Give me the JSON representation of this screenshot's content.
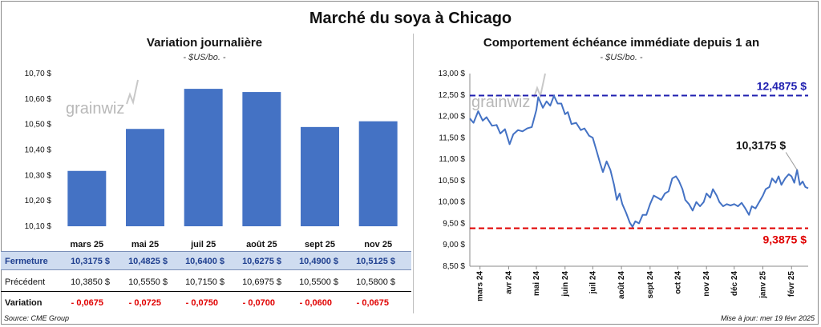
{
  "title": "Marché du soya à Chicago",
  "left_panel": {
    "title": "Variation journalière",
    "subtitle": "- $US/bo. -",
    "watermark": "grainwiz"
  },
  "right_panel": {
    "title": "Comportement échéance immédiate depuis 1 an",
    "subtitle": "- $US/bo. -",
    "watermark": "grainwiz"
  },
  "table": {
    "rows": [
      {
        "label": "Fermeture",
        "values": [
          "10,3175  $",
          "10,4825  $",
          "10,6400  $",
          "10,6275  $",
          "10,4900  $",
          "10,5125  $"
        ]
      },
      {
        "label": "Précédent",
        "values": [
          "10,3850  $",
          "10,5550  $",
          "10,7150  $",
          "10,6975  $",
          "10,5500  $",
          "10,5800  $"
        ]
      },
      {
        "label": "Variation",
        "values": [
          "- 0,0675",
          "- 0,0725",
          "- 0,0750",
          "- 0,0700",
          "- 0,0600",
          "- 0,0675"
        ]
      }
    ]
  },
  "footer": {
    "source": "Source: CME Group",
    "update": "Mise à jour: mer 19 févr 2025"
  },
  "colors": {
    "bar": "#4472c4",
    "line": "#4472c4",
    "high_line": "#1f1fb0",
    "low_line": "#e00000"
  },
  "chart_data": [
    {
      "type": "bar",
      "title": "Variation journalière",
      "subtitle": "- $US/bo. -",
      "categories": [
        "mars 25",
        "mai 25",
        "juil 25",
        "août 25",
        "sept 25",
        "nov 25"
      ],
      "values": [
        10.3175,
        10.4825,
        10.64,
        10.6275,
        10.49,
        10.5125
      ],
      "ylim": [
        10.1,
        10.7
      ],
      "yticks": [
        10.1,
        10.2,
        10.3,
        10.4,
        10.5,
        10.6,
        10.7
      ],
      "ytick_labels": [
        "10,10 $",
        "10,20 $",
        "10,30 $",
        "10,40 $",
        "10,50 $",
        "10,60 $",
        "10,70 $"
      ],
      "grid": false,
      "legend": "none"
    },
    {
      "type": "line",
      "title": "Comportement échéance immédiate depuis 1 an",
      "subtitle": "- $US/bo. -",
      "ylim": [
        8.5,
        13.0
      ],
      "yticks": [
        8.5,
        9.0,
        9.5,
        10.0,
        10.5,
        11.0,
        11.5,
        12.0,
        12.5,
        13.0
      ],
      "ytick_labels": [
        "8,50 $",
        "9,00 $",
        "9,50 $",
        "10,00 $",
        "10,50 $",
        "11,00 $",
        "11,50 $",
        "12,00 $",
        "12,50 $",
        "13,00 $"
      ],
      "xlim": [
        "2024-02-19",
        "2025-02-19"
      ],
      "xticks": [
        {
          "date": "2024-03-01",
          "label": "mars 24"
        },
        {
          "date": "2024-04-01",
          "label": "avr 24"
        },
        {
          "date": "2024-05-01",
          "label": "mai 24"
        },
        {
          "date": "2024-06-01",
          "label": "juin 24"
        },
        {
          "date": "2024-07-01",
          "label": "juil 24"
        },
        {
          "date": "2024-08-01",
          "label": "août 24"
        },
        {
          "date": "2024-09-01",
          "label": "sept 24"
        },
        {
          "date": "2024-10-01",
          "label": "oct 24"
        },
        {
          "date": "2024-11-01",
          "label": "nov 24"
        },
        {
          "date": "2024-12-01",
          "label": "déc 24"
        },
        {
          "date": "2025-01-01",
          "label": "janv 25"
        },
        {
          "date": "2025-02-01",
          "label": "févr 25"
        }
      ],
      "series": [
        {
          "points": [
            [
              "2024-02-19",
              11.95
            ],
            [
              "2024-02-23",
              11.85
            ],
            [
              "2024-02-28",
              12.12
            ],
            [
              "2024-03-04",
              11.9
            ],
            [
              "2024-03-08",
              11.98
            ],
            [
              "2024-03-14",
              11.78
            ],
            [
              "2024-03-19",
              11.8
            ],
            [
              "2024-03-23",
              11.6
            ],
            [
              "2024-03-28",
              11.7
            ],
            [
              "2024-04-02",
              11.35
            ],
            [
              "2024-04-06",
              11.58
            ],
            [
              "2024-04-11",
              11.68
            ],
            [
              "2024-04-16",
              11.65
            ],
            [
              "2024-04-21",
              11.72
            ],
            [
              "2024-04-26",
              11.75
            ],
            [
              "2024-05-01",
              12.15
            ],
            [
              "2024-05-03",
              12.45
            ],
            [
              "2024-05-08",
              12.2
            ],
            [
              "2024-05-12",
              12.35
            ],
            [
              "2024-05-16",
              12.25
            ],
            [
              "2024-05-20",
              12.48
            ],
            [
              "2024-05-24",
              12.3
            ],
            [
              "2024-05-28",
              12.3
            ],
            [
              "2024-06-01",
              12.05
            ],
            [
              "2024-06-04",
              12.1
            ],
            [
              "2024-06-08",
              11.82
            ],
            [
              "2024-06-13",
              11.85
            ],
            [
              "2024-06-18",
              11.68
            ],
            [
              "2024-06-22",
              11.72
            ],
            [
              "2024-06-27",
              11.55
            ],
            [
              "2024-07-01",
              11.5
            ],
            [
              "2024-07-05",
              11.2
            ],
            [
              "2024-07-09",
              10.9
            ],
            [
              "2024-07-12",
              10.7
            ],
            [
              "2024-07-16",
              10.95
            ],
            [
              "2024-07-20",
              10.75
            ],
            [
              "2024-07-24",
              10.4
            ],
            [
              "2024-07-27",
              10.05
            ],
            [
              "2024-07-30",
              10.2
            ],
            [
              "2024-08-02",
              9.95
            ],
            [
              "2024-08-06",
              9.75
            ],
            [
              "2024-08-10",
              9.52
            ],
            [
              "2024-08-13",
              9.42
            ],
            [
              "2024-08-16",
              9.55
            ],
            [
              "2024-08-20",
              9.5
            ],
            [
              "2024-08-24",
              9.7
            ],
            [
              "2024-08-28",
              9.7
            ],
            [
              "2024-09-01",
              9.95
            ],
            [
              "2024-09-05",
              10.15
            ],
            [
              "2024-09-09",
              10.1
            ],
            [
              "2024-09-13",
              10.05
            ],
            [
              "2024-09-17",
              10.2
            ],
            [
              "2024-09-21",
              10.25
            ],
            [
              "2024-09-25",
              10.55
            ],
            [
              "2024-09-29",
              10.6
            ],
            [
              "2024-10-02",
              10.5
            ],
            [
              "2024-10-06",
              10.3
            ],
            [
              "2024-10-09",
              10.05
            ],
            [
              "2024-10-13",
              9.95
            ],
            [
              "2024-10-17",
              9.8
            ],
            [
              "2024-10-21",
              10.0
            ],
            [
              "2024-10-25",
              9.9
            ],
            [
              "2024-10-29",
              10.0
            ],
            [
              "2024-11-01",
              10.2
            ],
            [
              "2024-11-05",
              10.1
            ],
            [
              "2024-11-08",
              10.3
            ],
            [
              "2024-11-12",
              10.15
            ],
            [
              "2024-11-15",
              10.0
            ],
            [
              "2024-11-19",
              9.9
            ],
            [
              "2024-11-23",
              9.95
            ],
            [
              "2024-11-27",
              9.92
            ],
            [
              "2024-12-01",
              9.95
            ],
            [
              "2024-12-05",
              9.9
            ],
            [
              "2024-12-09",
              9.98
            ],
            [
              "2024-12-13",
              9.85
            ],
            [
              "2024-12-17",
              9.7
            ],
            [
              "2024-12-20",
              9.9
            ],
            [
              "2024-12-24",
              9.85
            ],
            [
              "2024-12-28",
              10.0
            ],
            [
              "2025-01-01",
              10.15
            ],
            [
              "2025-01-04",
              10.3
            ],
            [
              "2025-01-08",
              10.35
            ],
            [
              "2025-01-11",
              10.55
            ],
            [
              "2025-01-15",
              10.45
            ],
            [
              "2025-01-18",
              10.6
            ],
            [
              "2025-01-21",
              10.4
            ],
            [
              "2025-01-25",
              10.55
            ],
            [
              "2025-01-29",
              10.65
            ],
            [
              "2025-02-01",
              10.6
            ],
            [
              "2025-02-04",
              10.45
            ],
            [
              "2025-02-07",
              10.75
            ],
            [
              "2025-02-10",
              10.4
            ],
            [
              "2025-02-13",
              10.48
            ],
            [
              "2025-02-16",
              10.35
            ],
            [
              "2025-02-19",
              10.32
            ]
          ],
          "color": "#4472c4"
        }
      ],
      "reference_lines": [
        {
          "value": 12.4875,
          "label": "12,4875 $",
          "color": "#1f1fb0",
          "style": "dashed"
        },
        {
          "value": 9.3875,
          "label": "9,3875 $",
          "color": "#e00000",
          "style": "dashed"
        }
      ],
      "annotations": [
        {
          "text": "10,3175 $",
          "date": "2025-02-19",
          "value": 10.3175
        }
      ],
      "grid": false,
      "legend": "none"
    }
  ]
}
